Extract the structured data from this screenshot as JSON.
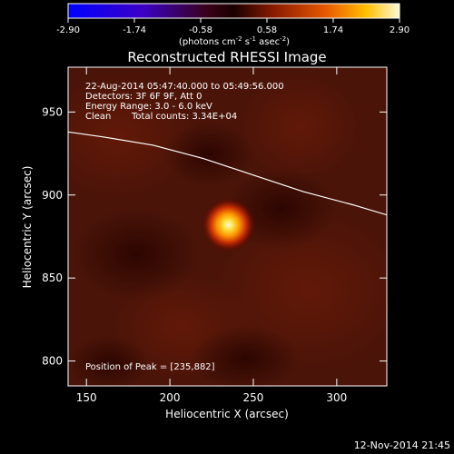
{
  "chart_data": {
    "type": "heatmap",
    "title": "Reconstructed RHESSI Image",
    "xlabel": "Heliocentric X (arcsec)",
    "ylabel": "Heliocentric Y (arcsec)",
    "xlim": [
      139,
      330
    ],
    "ylim": [
      785,
      977
    ],
    "xticks": [
      150,
      200,
      250,
      300
    ],
    "yticks": [
      800,
      850,
      900,
      950
    ],
    "colorbar": {
      "ticks": [
        "-2.90",
        "-1.74",
        "-0.58",
        "0.58",
        "1.74",
        "2.90"
      ],
      "range": [
        -2.9,
        2.9
      ],
      "unit_main": "(photons cm",
      "unit_exp1": "-2",
      "unit_mid": " s",
      "unit_exp2": "-1",
      "unit_end": " asec",
      "unit_exp3": "-2",
      "unit_close": ")"
    },
    "peak": {
      "x": 235,
      "y": 882,
      "value": 2.9
    },
    "limb_curve": [
      [
        139,
        938
      ],
      [
        160,
        935
      ],
      [
        190,
        930
      ],
      [
        220,
        922
      ],
      [
        250,
        912
      ],
      [
        280,
        902
      ],
      [
        310,
        894
      ],
      [
        330,
        888
      ]
    ],
    "annotations": {
      "time_range": "22-Aug-2014 05:47:40.000 to 05:49:56.000",
      "detectors": "Detectors: 3F 6F 9F, Att 0",
      "energy": "Energy Range: 3.0 - 6.0 keV",
      "method": "Clean",
      "counts": "Total counts: 3.34E+04",
      "peak_position": "Position of Peak = [235,882]"
    },
    "footer_date": "12-Nov-2014 21:45"
  }
}
